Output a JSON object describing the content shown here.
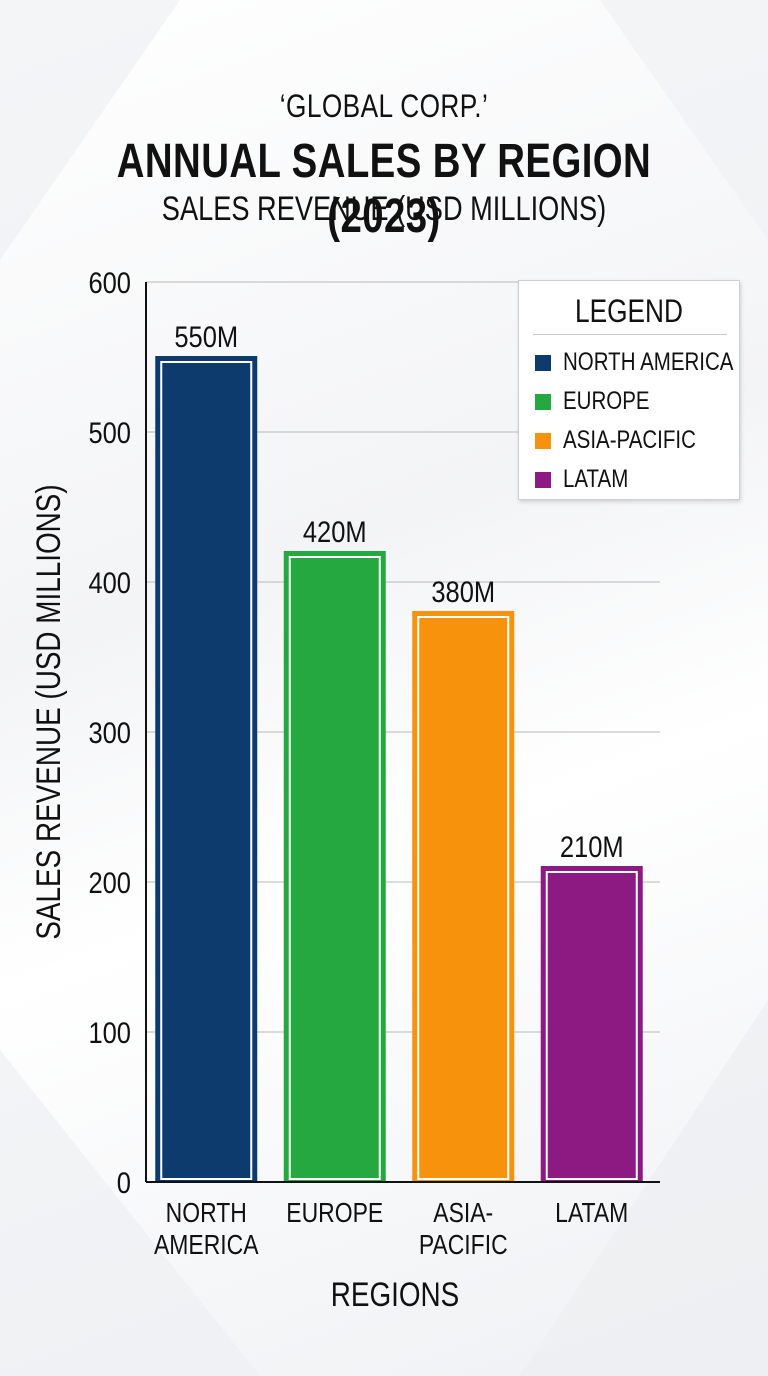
{
  "company": "‘GLOBAL CORP.’",
  "chart_data": {
    "type": "bar",
    "title": "ANNUAL SALES BY REGION (2023)",
    "subtitle": "SALES REVENUE (USD MILLIONS)",
    "xlabel": "REGIONS",
    "ylabel": "SALES REVENUE (USD MILLIONS)",
    "categories": [
      [
        "NORTH",
        "AMERICA"
      ],
      [
        "EUROPE"
      ],
      [
        "ASIA-",
        "PACIFIC"
      ],
      [
        "LATAM"
      ]
    ],
    "values": [
      550,
      420,
      380,
      210
    ],
    "value_labels": [
      "550M",
      "420M",
      "380M",
      "210M"
    ],
    "colors": [
      "#0d3b6e",
      "#25a83f",
      "#f7920c",
      "#8c1a82"
    ],
    "ylim": [
      0,
      600
    ],
    "yticks": [
      0,
      100,
      200,
      300,
      400,
      500,
      600
    ],
    "grid": true,
    "legend": {
      "title": "LEGEND",
      "position": "top-right",
      "items": [
        {
          "label": "NORTH AMERICA",
          "color": "#0d3b6e"
        },
        {
          "label": "EUROPE",
          "color": "#25a83f"
        },
        {
          "label": "ASIA-PACIFIC",
          "color": "#f7920c"
        },
        {
          "label": "LATAM",
          "color": "#8c1a82"
        }
      ]
    }
  }
}
